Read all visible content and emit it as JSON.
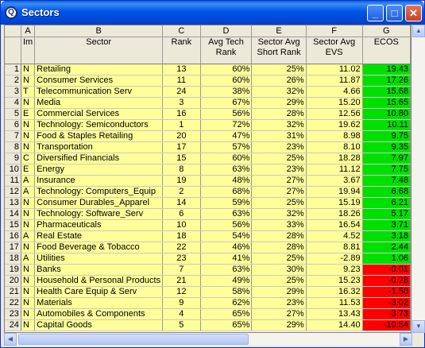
{
  "window": {
    "title": "Sectors",
    "app_icon_glyph": "Q"
  },
  "titlebar_buttons": {
    "minimize": "_",
    "maximize": "□",
    "close": "✕"
  },
  "column_letters": [
    "A",
    "B",
    "C",
    "D",
    "E",
    "F",
    "G"
  ],
  "column_names": [
    "Im",
    "Sector",
    "Rank",
    "Avg Tech Rank",
    "Sector Avg Short Rank",
    "Sector Avg EVS",
    "ECOS"
  ],
  "rows": [
    {
      "n": "1",
      "a": "N",
      "sector": "Retailing",
      "rank": "13",
      "tech": "60%",
      "short": "25%",
      "evs": "11.02",
      "ecos": "19.43",
      "tone": "g"
    },
    {
      "n": "2",
      "a": "N",
      "sector": "Consumer Services",
      "rank": "11",
      "tech": "60%",
      "short": "26%",
      "evs": "11.87",
      "ecos": "17.26",
      "tone": "g"
    },
    {
      "n": "3",
      "a": "T",
      "sector": "Telecommunication Serv",
      "rank": "24",
      "tech": "38%",
      "short": "32%",
      "evs": "4.66",
      "ecos": "15.68",
      "tone": "g"
    },
    {
      "n": "4",
      "a": "N",
      "sector": "Media",
      "rank": "3",
      "tech": "67%",
      "short": "29%",
      "evs": "15.20",
      "ecos": "15.65",
      "tone": "g"
    },
    {
      "n": "5",
      "a": "E",
      "sector": "Commercial Services",
      "rank": "16",
      "tech": "56%",
      "short": "28%",
      "evs": "12.56",
      "ecos": "10.80",
      "tone": "g"
    },
    {
      "n": "6",
      "a": "N",
      "sector": "Technology: Semiconductors",
      "rank": "1",
      "tech": "72%",
      "short": "32%",
      "evs": "19.62",
      "ecos": "10.11",
      "tone": "g"
    },
    {
      "n": "7",
      "a": "N",
      "sector": "Food & Staples Retailing",
      "rank": "20",
      "tech": "47%",
      "short": "31%",
      "evs": "8.98",
      "ecos": "9.75",
      "tone": "g"
    },
    {
      "n": "8",
      "a": "N",
      "sector": "Transportation",
      "rank": "17",
      "tech": "57%",
      "short": "23%",
      "evs": "8.10",
      "ecos": "9.35",
      "tone": "g"
    },
    {
      "n": "9",
      "a": "C",
      "sector": "Diversified Financials",
      "rank": "15",
      "tech": "60%",
      "short": "25%",
      "evs": "18.28",
      "ecos": "7.97",
      "tone": "g"
    },
    {
      "n": "10",
      "a": "E",
      "sector": "Energy",
      "rank": "8",
      "tech": "63%",
      "short": "23%",
      "evs": "11.12",
      "ecos": "7.75",
      "tone": "g"
    },
    {
      "n": "11",
      "a": "A",
      "sector": "Insurance",
      "rank": "19",
      "tech": "48%",
      "short": "27%",
      "evs": "3.67",
      "ecos": "7.48",
      "tone": "g"
    },
    {
      "n": "12",
      "a": "A",
      "sector": "Technology: Computers_Equip",
      "rank": "2",
      "tech": "68%",
      "short": "27%",
      "evs": "19.94",
      "ecos": "6.68",
      "tone": "g"
    },
    {
      "n": "13",
      "a": "N",
      "sector": "Consumer Durables_Apparel",
      "rank": "14",
      "tech": "59%",
      "short": "25%",
      "evs": "15.19",
      "ecos": "6.21",
      "tone": "g"
    },
    {
      "n": "14",
      "a": "N",
      "sector": "Technology: Software_Serv",
      "rank": "6",
      "tech": "63%",
      "short": "32%",
      "evs": "18.26",
      "ecos": "5.17",
      "tone": "g"
    },
    {
      "n": "15",
      "a": "N",
      "sector": "Pharmaceuticals",
      "rank": "10",
      "tech": "56%",
      "short": "33%",
      "evs": "16.54",
      "ecos": "3.71",
      "tone": "g"
    },
    {
      "n": "16",
      "a": "A",
      "sector": "Real Estate",
      "rank": "18",
      "tech": "54%",
      "short": "28%",
      "evs": "4.52",
      "ecos": "3.18",
      "tone": "g"
    },
    {
      "n": "17",
      "a": "N",
      "sector": "Food Beverage & Tobacco",
      "rank": "22",
      "tech": "46%",
      "short": "28%",
      "evs": "8.81",
      "ecos": "2.44",
      "tone": "g"
    },
    {
      "n": "18",
      "a": "A",
      "sector": "Utilities",
      "rank": "23",
      "tech": "41%",
      "short": "25%",
      "evs": "-2.89",
      "ecos": "1.06",
      "tone": "g"
    },
    {
      "n": "19",
      "a": "N",
      "sector": "Banks",
      "rank": "7",
      "tech": "63%",
      "short": "30%",
      "evs": "9.23",
      "ecos": "-0.01",
      "tone": "r"
    },
    {
      "n": "20",
      "a": "N",
      "sector": "Household & Personal Products",
      "rank": "21",
      "tech": "49%",
      "short": "25%",
      "evs": "15.23",
      "ecos": "-0.28",
      "tone": "r"
    },
    {
      "n": "21",
      "a": "N",
      "sector": "Health Care Equip & Serv",
      "rank": "12",
      "tech": "58%",
      "short": "29%",
      "evs": "16.32",
      "ecos": "-1.50",
      "tone": "r"
    },
    {
      "n": "22",
      "a": "N",
      "sector": "Materials",
      "rank": "9",
      "tech": "62%",
      "short": "23%",
      "evs": "11.53",
      "ecos": "-3.02",
      "tone": "r"
    },
    {
      "n": "23",
      "a": "N",
      "sector": "Automobiles & Components",
      "rank": "4",
      "tech": "65%",
      "short": "27%",
      "evs": "13.43",
      "ecos": "-3.73",
      "tone": "r"
    },
    {
      "n": "24",
      "a": "N",
      "sector": "Capital Goods",
      "rank": "5",
      "tech": "65%",
      "short": "29%",
      "evs": "14.40",
      "ecos": "-10.54",
      "tone": "r"
    }
  ],
  "colors": {
    "cell_bg": "#ffff99",
    "positive": "#00e000",
    "negative": "#ff0000",
    "title_bar": "#0055e5"
  },
  "scroll_glyphs": {
    "left": "◀",
    "right": "▶",
    "up": "▲",
    "down": "▼"
  }
}
